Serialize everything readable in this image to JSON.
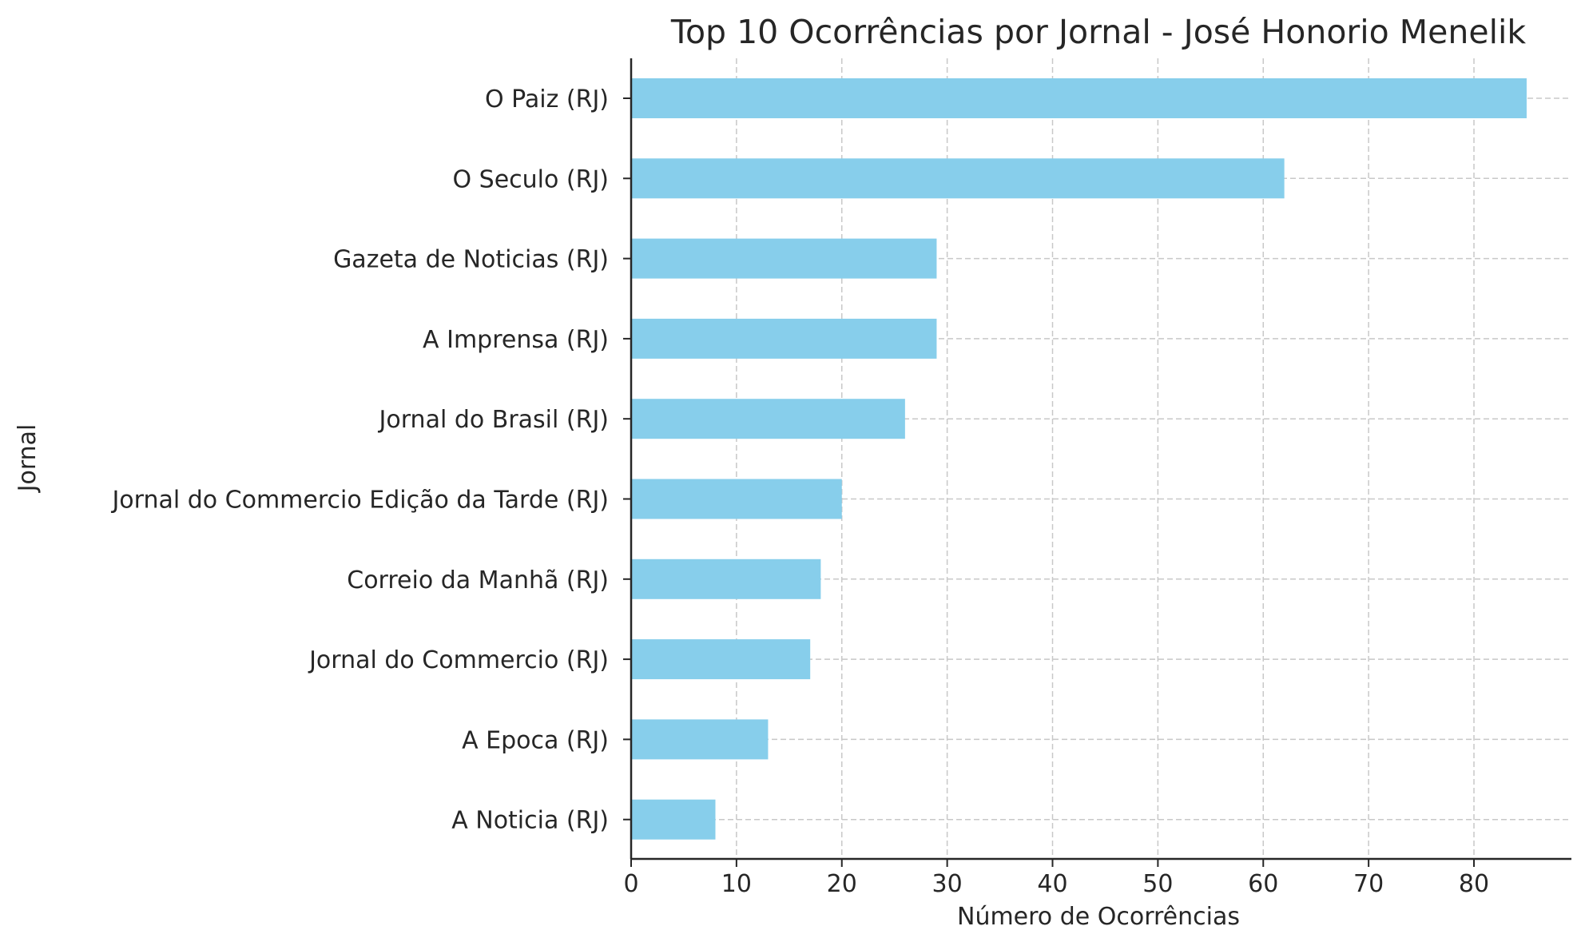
{
  "chart_data": {
    "type": "bar",
    "orientation": "horizontal",
    "title": "Top 10 Ocorrências por Jornal - José Honorio Menelik",
    "xlabel": "Número de Ocorrências",
    "ylabel": "Jornal",
    "categories": [
      "O Paiz (RJ)",
      "O Seculo (RJ)",
      "Gazeta de Noticias (RJ)",
      "A Imprensa (RJ)",
      "Jornal do Brasil (RJ)",
      "Jornal do Commercio Edição da Tarde (RJ)",
      "Correio da Manhã (RJ)",
      "Jornal do Commercio (RJ)",
      "A Epoca (RJ)",
      "A Noticia (RJ)"
    ],
    "values": [
      85,
      62,
      29,
      29,
      26,
      20,
      18,
      17,
      13,
      8
    ],
    "xlim": [
      0,
      89.25
    ],
    "xticks": [
      0,
      10,
      20,
      30,
      40,
      50,
      60,
      70,
      80
    ],
    "grid": true,
    "bar_color": "#87ceeb"
  }
}
